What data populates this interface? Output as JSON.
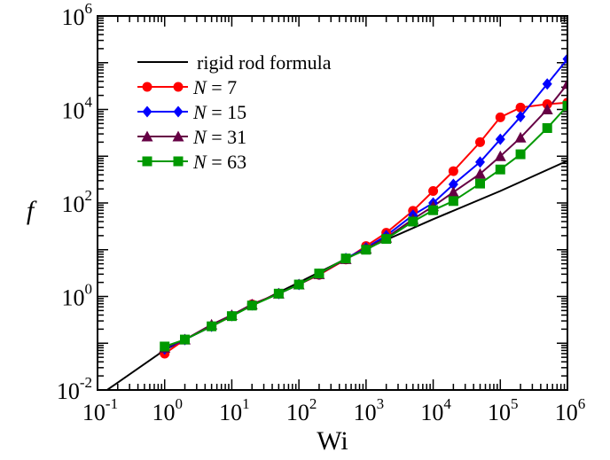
{
  "chart_data": {
    "type": "line",
    "xlabel": "Wi",
    "ylabel": "f",
    "xscale": "log",
    "yscale": "log",
    "xlim": [
      0.1,
      1000000
    ],
    "ylim": [
      0.01,
      1000000
    ],
    "x_tick_labels": [
      {
        "base": "10",
        "exp": "-1"
      },
      {
        "base": "10",
        "exp": "0"
      },
      {
        "base": "10",
        "exp": "1"
      },
      {
        "base": "10",
        "exp": "2"
      },
      {
        "base": "10",
        "exp": "3"
      },
      {
        "base": "10",
        "exp": "4"
      },
      {
        "base": "10",
        "exp": "5"
      },
      {
        "base": "10",
        "exp": "6"
      }
    ],
    "y_tick_labels": [
      {
        "base": "10",
        "exp": "-2"
      },
      {
        "base": "10",
        "exp": "0"
      },
      {
        "base": "10",
        "exp": "2"
      },
      {
        "base": "10",
        "exp": "4"
      },
      {
        "base": "10",
        "exp": "6"
      }
    ],
    "legend_position": "top-left",
    "reference_line": {
      "name": "rigid rod formula",
      "color": "#000000",
      "x": [
        0.1,
        1,
        10,
        100,
        1000,
        10000,
        100000,
        1000000
      ],
      "y": [
        0.0072,
        0.072,
        0.39,
        2.0,
        10.5,
        45,
        180,
        800
      ]
    },
    "series": [
      {
        "name": "N = 7",
        "label_prefix": "N",
        "label_suffix": " = 7",
        "color": "#ff0000",
        "marker": "circle",
        "x": [
          1,
          2,
          5,
          10,
          20,
          50,
          100,
          200,
          500,
          1000,
          2000,
          5000,
          10000,
          20000,
          50000,
          100000,
          200000,
          500000,
          1000000
        ],
        "y": [
          0.06,
          0.12,
          0.23,
          0.38,
          0.68,
          1.15,
          1.8,
          2.9,
          6.2,
          12,
          23,
          68,
          180,
          480,
          2000,
          6800,
          11000,
          13000,
          14000
        ]
      },
      {
        "name": "N = 15",
        "label_prefix": "N",
        "label_suffix": " = 15",
        "color": "#0000ff",
        "marker": "diamond",
        "x": [
          1,
          2,
          5,
          10,
          20,
          50,
          100,
          200,
          500,
          1000,
          2000,
          5000,
          10000,
          20000,
          50000,
          100000,
          200000,
          500000,
          1000000
        ],
        "y": [
          0.075,
          0.12,
          0.23,
          0.39,
          0.66,
          1.15,
          1.8,
          3.0,
          6.5,
          11,
          20,
          55,
          100,
          250,
          750,
          2300,
          7000,
          35000,
          120000
        ]
      },
      {
        "name": "N = 31",
        "label_prefix": "N",
        "label_suffix": " = 31",
        "color": "#660044",
        "marker": "triangle",
        "x": [
          1,
          2,
          5,
          10,
          20,
          50,
          100,
          200,
          500,
          1000,
          2000,
          5000,
          10000,
          20000,
          50000,
          100000,
          200000,
          500000,
          1000000
        ],
        "y": [
          0.08,
          0.12,
          0.25,
          0.4,
          0.68,
          1.15,
          1.8,
          3.0,
          6.3,
          10.5,
          18,
          45,
          85,
          170,
          420,
          1000,
          2500,
          10000,
          35000
        ]
      },
      {
        "name": "N = 63",
        "label_prefix": "N",
        "label_suffix": " = 63",
        "color": "#009900",
        "marker": "square",
        "x": [
          1,
          2,
          5,
          10,
          20,
          50,
          100,
          200,
          500,
          1000,
          2000,
          5000,
          10000,
          20000,
          50000,
          100000,
          200000,
          500000,
          1000000
        ],
        "y": [
          0.085,
          0.12,
          0.23,
          0.38,
          0.64,
          1.15,
          1.8,
          3.1,
          6.5,
          10,
          17,
          40,
          70,
          110,
          260,
          520,
          1100,
          4000,
          12000
        ]
      }
    ]
  }
}
